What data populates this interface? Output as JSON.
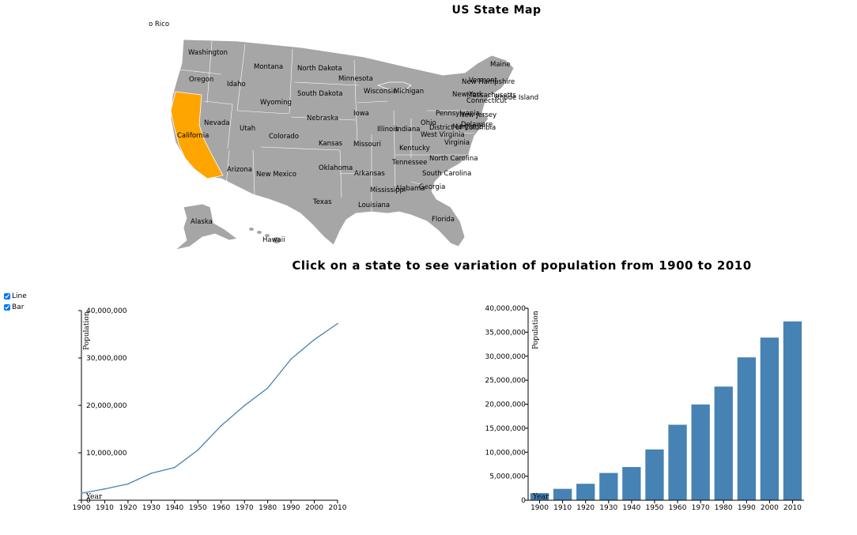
{
  "map": {
    "title": "US State Map",
    "top_left_fragment": "o Rico",
    "selected_state": "California",
    "colors": {
      "state_fill": "#a6a6a6",
      "state_border": "#ffffff",
      "selected_fill": "#ffa500"
    },
    "state_labels": [
      "Washington",
      "Oregon",
      "Idaho",
      "Montana",
      "North Dakota",
      "Minnesota",
      "Wyoming",
      "South Dakota",
      "Wisconsin",
      "Michigan",
      "Maine",
      "Vermont",
      "New Hampshire",
      "New York",
      "Massachusetts",
      "Rhode Island",
      "Connecticut",
      "Pennsylvania",
      "New Jersey",
      "Delaware",
      "Maryland",
      "District of Columbia",
      "Iowa",
      "Nebraska",
      "Nevada",
      "Utah",
      "California",
      "Colorado",
      "Kansas",
      "Missouri",
      "Illinois",
      "Indiana",
      "Ohio",
      "West Virginia",
      "Virginia",
      "Kentucky",
      "Tennessee",
      "North Carolina",
      "South Carolina",
      "Arizona",
      "New Mexico",
      "Oklahoma",
      "Arkansas",
      "Mississippi",
      "Alabama",
      "Georgia",
      "Texas",
      "Louisiana",
      "Florida",
      "Alaska",
      "Hawaii"
    ]
  },
  "subtitle": "Click on a state to see variation of population from 1900 to 2010",
  "controls": {
    "line_label": "Line",
    "bar_label": "Bar",
    "line_checked": true,
    "bar_checked": true
  },
  "chart_data": [
    {
      "type": "line",
      "title": "",
      "xlabel": "Year",
      "ylabel": "Population",
      "x": [
        1900,
        1910,
        1920,
        1930,
        1940,
        1950,
        1960,
        1970,
        1980,
        1990,
        2000,
        2010
      ],
      "values": [
        1485053,
        2377549,
        3426861,
        5677251,
        6907387,
        10586223,
        15717204,
        19953134,
        23667902,
        29760021,
        33871648,
        37253956
      ],
      "ylim": [
        0,
        40000000
      ],
      "yticks": [
        "0",
        "10,000,000",
        "20,000,000",
        "30,000,000",
        "40,000,000"
      ],
      "xticks": [
        "1900",
        "1910",
        "1920",
        "1930",
        "1940",
        "1950",
        "1960",
        "1970",
        "1980",
        "1990",
        "2000",
        "2010"
      ],
      "color": "#4682b4"
    },
    {
      "type": "bar",
      "title": "",
      "xlabel": "Year",
      "ylabel": "Population",
      "categories": [
        "1900",
        "1910",
        "1920",
        "1930",
        "1940",
        "1950",
        "1960",
        "1970",
        "1980",
        "1990",
        "2000",
        "2010"
      ],
      "values": [
        1485053,
        2377549,
        3426861,
        5677251,
        6907387,
        10586223,
        15717204,
        19953134,
        23667902,
        29760021,
        33871648,
        37253956
      ],
      "ylim": [
        0,
        40000000
      ],
      "yticks": [
        "0",
        "5,000,000",
        "10,000,000",
        "15,000,000",
        "20,000,000",
        "25,000,000",
        "30,000,000",
        "35,000,000",
        "40,000,000"
      ],
      "color": "#4682b4"
    }
  ]
}
